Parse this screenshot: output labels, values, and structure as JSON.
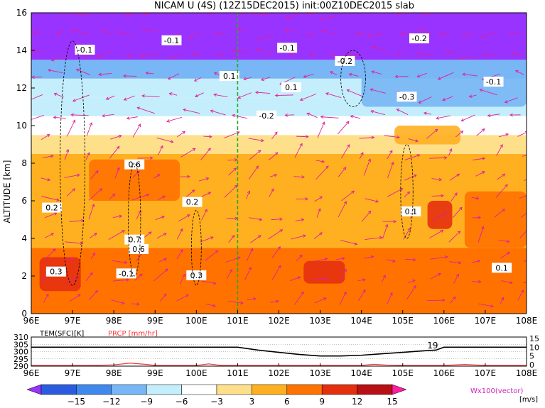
{
  "chart_data": [
    {
      "type": "heatmap",
      "title": "NICAM U (4S) (12Z15DEC2015) init:00Z10DEC2015 slab",
      "xlabel": "",
      "ylabel": "ALTITUDE [km]",
      "x_ticks": [
        "96E",
        "97E",
        "98E",
        "99E",
        "100E",
        "101E",
        "102E",
        "103E",
        "104E",
        "105E",
        "106E",
        "107E",
        "108E"
      ],
      "y_ticks": [
        "0",
        "2",
        "4",
        "6",
        "8",
        "10",
        "12",
        "14",
        "16"
      ],
      "xlim": [
        96,
        108
      ],
      "ylim": [
        0,
        16
      ],
      "marker_longitude": 101.0,
      "layers": [
        {
          "altitude": [
            0,
            3.5
          ],
          "u": 9
        },
        {
          "altitude": [
            3.5,
            8.5
          ],
          "u": 6
        },
        {
          "altitude": [
            8.5,
            9.5
          ],
          "u": 3
        },
        {
          "altitude": [
            9.5,
            10.5
          ],
          "u": 0
        },
        {
          "altitude": [
            10.5,
            11.5
          ],
          "u": -3
        },
        {
          "altitude": [
            11.5,
            12.5
          ],
          "u": -6
        },
        {
          "altitude": [
            12.5,
            13.5
          ],
          "u": -9
        },
        {
          "altitude": [
            13.5,
            16
          ],
          "u": -15
        }
      ],
      "contour_labels": [
        "0.1",
        "-0.1",
        "0.2",
        "-0.2",
        "0.3",
        "-0.3",
        "0.6",
        "0.7"
      ]
    },
    {
      "type": "line",
      "legend": [
        "TEM(SFC)[K]",
        "PRCP [mm/hr]"
      ],
      "x_ticks": [
        "96E",
        "97E",
        "98E",
        "99E",
        "100E",
        "101E",
        "102E",
        "103E",
        "104E",
        "105E",
        "106E",
        "107E",
        "108E"
      ],
      "y_left_ticks": [
        "310",
        "305",
        "300",
        "295",
        "290"
      ],
      "y_right_ticks": [
        "15",
        "10",
        "5",
        "0"
      ],
      "ylim_left": [
        290,
        310
      ],
      "ylim_right": [
        0,
        15
      ],
      "annotation": "19",
      "series": [
        {
          "name": "TEM(SFC)[K]",
          "color": "#000000",
          "x": [
            96,
            97,
            98,
            99,
            100,
            101,
            101.5,
            102,
            102.5,
            103,
            103.5,
            104,
            104.5,
            105,
            105.5,
            105.8,
            106,
            106.5,
            107,
            107.5,
            108
          ],
          "values": [
            303,
            303,
            303,
            303,
            303,
            303,
            301,
            299.5,
            298,
            297,
            297,
            297.5,
            298.5,
            299.5,
            300.5,
            301,
            303,
            303,
            303,
            303,
            303
          ]
        },
        {
          "name": "PRCP [mm/hr]",
          "color": "#ff3333",
          "x": [
            96,
            96.5,
            97,
            97.5,
            98,
            98.4,
            98.8,
            99,
            99.5,
            100,
            100.3,
            100.6,
            101,
            102,
            103,
            104,
            104.3,
            104.6,
            105,
            105.5,
            106,
            106.5,
            107,
            107.5,
            108
          ],
          "values": [
            0,
            0,
            0,
            0,
            0.3,
            1.2,
            0.5,
            0,
            0,
            0,
            0.8,
            0,
            0,
            0,
            0,
            0,
            0.6,
            0.2,
            0,
            0,
            0,
            0.5,
            0,
            0,
            0
          ]
        }
      ]
    }
  ],
  "colorbar": {
    "labels": [
      "−15",
      "−12",
      "−9",
      "−6",
      "−3",
      "3",
      "6",
      "9",
      "12",
      "15"
    ],
    "unit": "[m/s]",
    "colors": [
      "#9933ff",
      "#2b5ce0",
      "#3f88ee",
      "#78b6f5",
      "#c4eefc",
      "#ffffff",
      "#ffe08a",
      "#ffb020",
      "#ff7200",
      "#e53010",
      "#b81014",
      "#ff1ea0"
    ]
  },
  "vector_label": "Wx100(vector)"
}
